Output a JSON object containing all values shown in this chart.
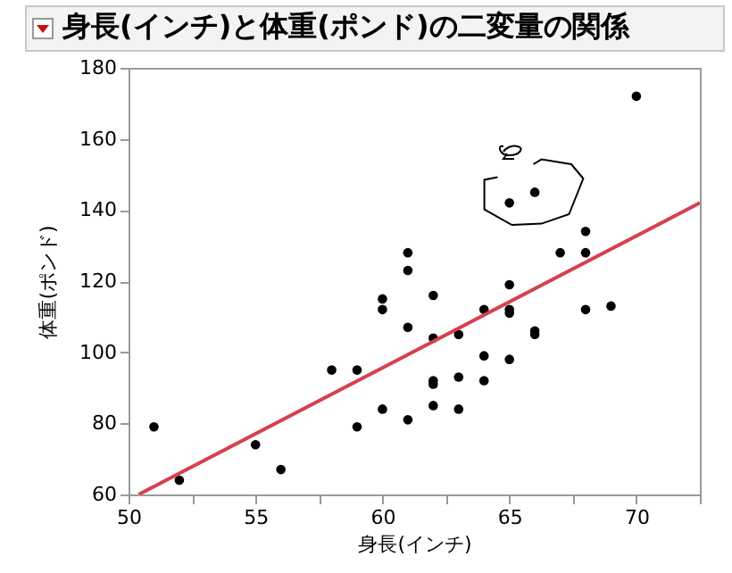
{
  "chart_data": {
    "type": "scatter",
    "title": "身長(インチ)と体重(ポンド)の二変量の関係",
    "xlabel": "身長(インチ)",
    "ylabel": "体重(ポンド)",
    "series": [
      {
        "color": "#000000",
        "marker": "circle",
        "x": [
          51,
          52,
          55,
          56,
          58,
          59,
          59,
          60,
          60,
          60,
          61,
          61,
          61,
          61,
          62,
          62,
          62,
          62,
          62,
          63,
          63,
          63,
          64,
          64,
          64,
          65,
          65,
          65,
          65,
          65,
          66,
          66,
          66,
          67,
          68,
          68,
          68,
          69,
          70
        ],
        "values": [
          79,
          64,
          74,
          67,
          95,
          95,
          79,
          115,
          112,
          84,
          128,
          123,
          107,
          81,
          116,
          104,
          92,
          91,
          85,
          105,
          93,
          84,
          112,
          99,
          92,
          119,
          112,
          111,
          98,
          142,
          145,
          106,
          105,
          128,
          134,
          128,
          112,
          113,
          172
        ]
      },
      {
        "type": "line",
        "color": "#d6404f",
        "x": [
          50.4,
          72.5
        ],
        "values": [
          60,
          142
        ]
      }
    ],
    "xlim": [
      50,
      72.5
    ],
    "ylim": [
      60,
      180
    ],
    "xticks": [
      50,
      {
        "value": 52.5,
        "label": null
      },
      55,
      {
        "value": 57.5,
        "label": null
      },
      60,
      {
        "value": 62.5,
        "label": null
      },
      65,
      {
        "value": 67.5,
        "label": null
      },
      70,
      {
        "value": 72.5,
        "label": null
      }
    ],
    "yticks": [
      60,
      80,
      100,
      120,
      140,
      160,
      180
    ]
  }
}
